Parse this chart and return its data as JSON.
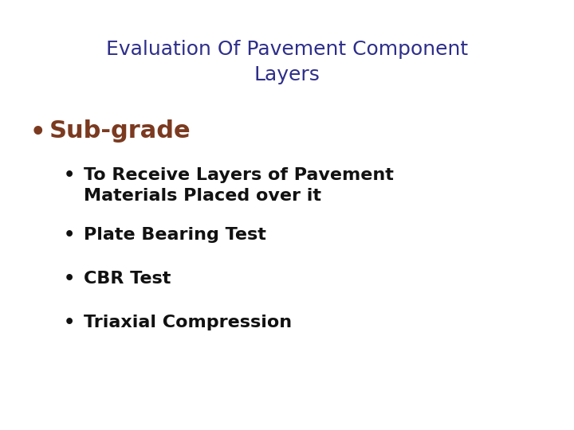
{
  "background_color": "#ffffff",
  "title_line1": "Evaluation Of Pavement Component",
  "title_line2": "Layers",
  "title_color": "#2e2e8b",
  "title_fontsize": 18,
  "bullet1_text": "Sub-grade",
  "bullet1_color": "#7b3a20",
  "bullet1_fontsize": 22,
  "bullet1_fontweight": "bold",
  "sub_bullets": [
    "To Receive Layers of Pavement\nMaterials Placed over it",
    "Plate Bearing Test",
    "CBR Test",
    "Triaxial Compression"
  ],
  "sub_bullet_color": "#111111",
  "sub_bullet_fontsize": 16,
  "sub_bullet_fontweight": "bold"
}
